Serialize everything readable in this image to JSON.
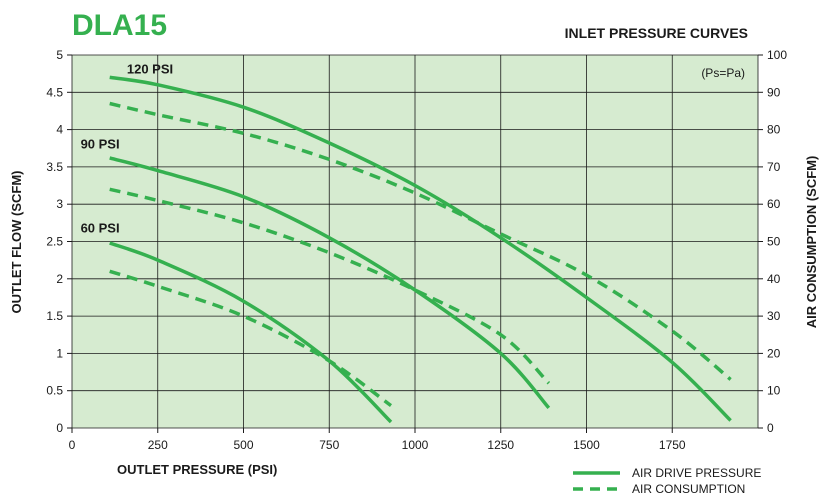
{
  "colors": {
    "plot_bg": "#d6ebd0",
    "grid": "#1a1a1a",
    "curve": "#35b04f",
    "title": "#35b04f",
    "text": "#1a1a1a"
  },
  "chart_data": {
    "type": "line",
    "model": "DLA15",
    "title": "INLET PRESSURE CURVES",
    "note": "(Ps=Pa)",
    "xlabel": "OUTLET PRESSURE (PSI)",
    "ylabel_left": "OUTLET FLOW (SCFM)",
    "ylabel_right": "AIR CONSUMPTION (SCFM)",
    "xlim": [
      0,
      2000
    ],
    "ylim_left": [
      0,
      5
    ],
    "ylim_right": [
      0,
      100
    ],
    "x_ticks": [
      "0",
      "250",
      "500",
      "750",
      "1000",
      "1250",
      "1500",
      "1750"
    ],
    "x_tick_values": [
      0,
      250,
      500,
      750,
      1000,
      1250,
      1500,
      1750
    ],
    "y_left_ticks": [
      "0",
      "0.5",
      "1",
      "1.5",
      "2",
      "2.5",
      "3",
      "3.5",
      "4",
      "4.5",
      "5"
    ],
    "y_left_tick_values": [
      0,
      0.5,
      1,
      1.5,
      2,
      2.5,
      3,
      3.5,
      4,
      4.5,
      5
    ],
    "y_right_ticks": [
      "0",
      "10",
      "20",
      "30",
      "40",
      "50",
      "60",
      "70",
      "80",
      "90",
      "100"
    ],
    "y_right_tick_values": [
      0,
      10,
      20,
      30,
      40,
      50,
      60,
      70,
      80,
      90,
      100
    ],
    "grid": true,
    "legend": {
      "position": "bottom-right",
      "entries": [
        {
          "label": "AIR DRIVE PRESSURE",
          "style": "solid"
        },
        {
          "label": "AIR CONSUMPTION",
          "style": "dashed"
        }
      ]
    },
    "curve_labels": [
      {
        "text": "120 PSI",
        "x": 160,
        "y": 4.75
      },
      {
        "text": "90 PSI",
        "x": 25,
        "y": 3.75
      },
      {
        "text": "60 PSI",
        "x": 25,
        "y": 2.62
      }
    ],
    "series": [
      {
        "name": "120 PSI",
        "kind": "AIR DRIVE PRESSURE",
        "axis": "left",
        "points": [
          [
            110,
            4.7
          ],
          [
            250,
            4.6
          ],
          [
            500,
            4.3
          ],
          [
            750,
            3.82
          ],
          [
            1000,
            3.25
          ],
          [
            1250,
            2.55
          ],
          [
            1500,
            1.75
          ],
          [
            1750,
            0.88
          ],
          [
            1920,
            0.1
          ]
        ]
      },
      {
        "name": "120 PSI",
        "kind": "AIR CONSUMPTION",
        "axis": "right",
        "points": [
          [
            110,
            87
          ],
          [
            250,
            84
          ],
          [
            500,
            79
          ],
          [
            750,
            72
          ],
          [
            1000,
            63
          ],
          [
            1250,
            52
          ],
          [
            1500,
            41
          ],
          [
            1750,
            26
          ],
          [
            1920,
            13
          ]
        ]
      },
      {
        "name": "90 PSI",
        "kind": "AIR DRIVE PRESSURE",
        "axis": "left",
        "points": [
          [
            110,
            3.62
          ],
          [
            250,
            3.45
          ],
          [
            500,
            3.1
          ],
          [
            750,
            2.55
          ],
          [
            1000,
            1.85
          ],
          [
            1250,
            1.0
          ],
          [
            1390,
            0.27
          ]
        ]
      },
      {
        "name": "90 PSI",
        "kind": "AIR CONSUMPTION",
        "axis": "right",
        "points": [
          [
            110,
            64
          ],
          [
            250,
            61
          ],
          [
            500,
            55
          ],
          [
            750,
            47
          ],
          [
            1000,
            37
          ],
          [
            1250,
            25
          ],
          [
            1390,
            12
          ]
        ]
      },
      {
        "name": "60 PSI",
        "kind": "AIR DRIVE PRESSURE",
        "axis": "left",
        "points": [
          [
            110,
            2.48
          ],
          [
            250,
            2.25
          ],
          [
            500,
            1.7
          ],
          [
            750,
            0.9
          ],
          [
            930,
            0.08
          ]
        ]
      },
      {
        "name": "60 PSI",
        "kind": "AIR CONSUMPTION",
        "axis": "right",
        "points": [
          [
            110,
            42
          ],
          [
            250,
            38
          ],
          [
            500,
            30
          ],
          [
            750,
            18
          ],
          [
            930,
            6
          ]
        ]
      }
    ]
  }
}
